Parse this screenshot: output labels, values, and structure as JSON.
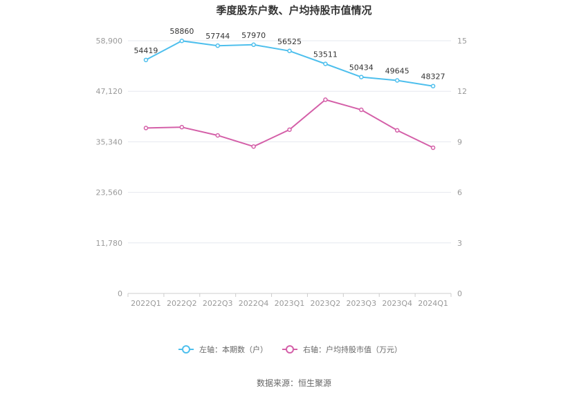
{
  "title": "季度股东户数、户均持股市值情况",
  "source": "数据来源：恒生聚源",
  "colors": {
    "left_series": "#4dbfed",
    "right_series": "#d45fa8",
    "grid": "#e6e8ef",
    "axis": "#999999"
  },
  "chart_data": {
    "type": "line",
    "title": "季度股东户数、户均持股市值情况",
    "categories": [
      "2022Q1",
      "2022Q2",
      "2022Q3",
      "2022Q4",
      "2023Q1",
      "2023Q2",
      "2023Q3",
      "2023Q4",
      "2024Q1"
    ],
    "left_axis": {
      "ylim": [
        0,
        58900
      ],
      "ticks": [
        "0",
        "11,780",
        "23,560",
        "35,340",
        "47,120",
        "58,900"
      ]
    },
    "right_axis": {
      "ylim": [
        0,
        15
      ],
      "ticks": [
        "0",
        "3",
        "6",
        "9",
        "12",
        "15"
      ]
    },
    "grid": true,
    "legend_position": "bottom",
    "series": [
      {
        "name": "左轴：本期数（户）",
        "axis": "left",
        "values": [
          54419,
          58860,
          57744,
          57970,
          56525,
          53511,
          50434,
          49645,
          48327
        ],
        "labels": [
          "54419",
          "58860",
          "57744",
          "57970",
          "56525",
          "53511",
          "50434",
          "49645",
          "48327"
        ]
      },
      {
        "name": "右轴：户均持股市值（万元）",
        "axis": "right",
        "values": [
          9.82,
          9.87,
          9.38,
          8.72,
          9.72,
          11.5,
          10.9,
          9.68,
          8.65
        ]
      }
    ]
  }
}
